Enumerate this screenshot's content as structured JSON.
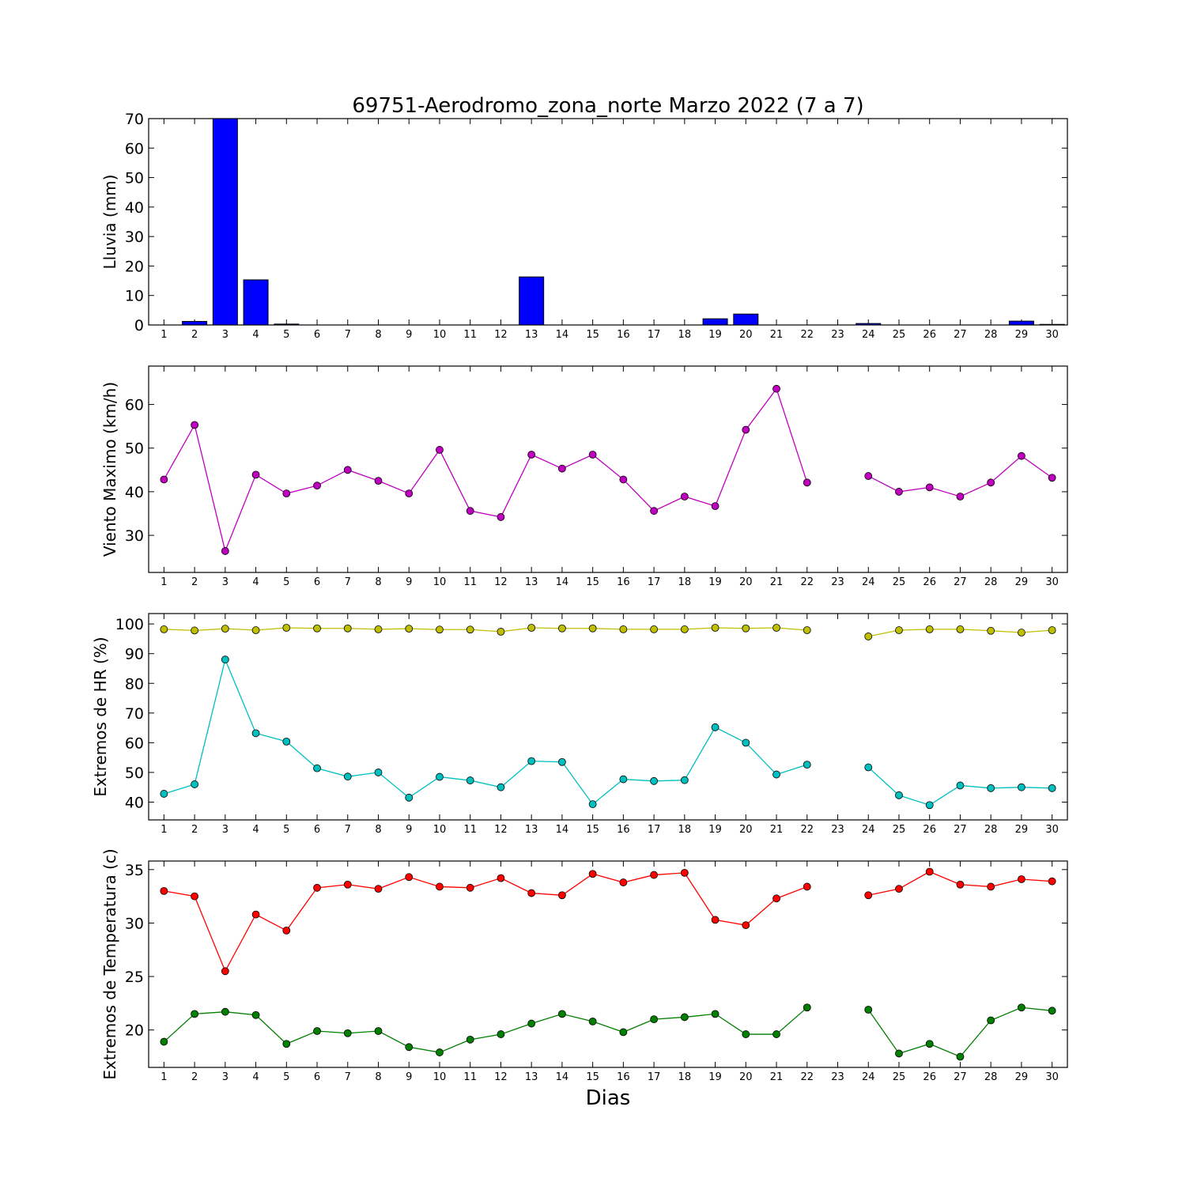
{
  "title": "69751-Aerodromo_zona_norte Marzo 2022  (7 a 7)",
  "xlabel": "Dias",
  "days": [
    1,
    2,
    3,
    4,
    5,
    6,
    7,
    8,
    9,
    10,
    11,
    12,
    13,
    14,
    15,
    16,
    17,
    18,
    19,
    20,
    21,
    22,
    23,
    24,
    25,
    26,
    27,
    28,
    29,
    30
  ],
  "chart_data": [
    {
      "type": "bar",
      "ylabel": "Lluvia (mm)",
      "ylim": [
        0,
        70
      ],
      "yticks": [
        0,
        10,
        20,
        30,
        40,
        50,
        60,
        70
      ],
      "color": "#0000ff",
      "series": [
        {
          "values": [
            0,
            1.2,
            70,
            15.3,
            0.3,
            0,
            0,
            0,
            0,
            0,
            0,
            0,
            16.3,
            0,
            0,
            0,
            0,
            0,
            2.1,
            3.7,
            0,
            0,
            0,
            0.5,
            0,
            0,
            0,
            0,
            1.3,
            0.2
          ]
        }
      ]
    },
    {
      "type": "line",
      "ylabel": "Viento Maximo (km/h)",
      "ylim": [
        21.5,
        68.8
      ],
      "yticks": [
        30,
        40,
        50,
        60
      ],
      "series": [
        {
          "color": "#bf00bf",
          "values": [
            42.8,
            55.3,
            26.4,
            43.9,
            39.6,
            41.4,
            45.0,
            42.5,
            39.6,
            49.6,
            35.6,
            34.2,
            48.5,
            45.3,
            48.5,
            42.8,
            35.6,
            38.9,
            36.7,
            54.2,
            63.6,
            42.1,
            null,
            43.6,
            40.0,
            41.0,
            38.9,
            42.1,
            48.2,
            43.2
          ]
        }
      ]
    },
    {
      "type": "line",
      "ylabel": "Extremos de HR (%)",
      "ylim": [
        34.0,
        103.5
      ],
      "yticks": [
        40,
        50,
        60,
        70,
        80,
        90,
        100
      ],
      "series": [
        {
          "color": "#bfbf00",
          "values": [
            98.2,
            97.8,
            98.4,
            97.9,
            98.7,
            98.5,
            98.5,
            98.2,
            98.4,
            98.1,
            98.1,
            97.4,
            98.7,
            98.5,
            98.5,
            98.2,
            98.2,
            98.2,
            98.7,
            98.5,
            98.7,
            97.9,
            null,
            95.8,
            97.9,
            98.2,
            98.2,
            97.7,
            97.1,
            97.9
          ]
        },
        {
          "color": "#00bfbf",
          "values": [
            42.8,
            46.0,
            88.0,
            63.2,
            60.4,
            51.4,
            48.6,
            50.0,
            41.5,
            48.5,
            47.3,
            45.0,
            53.8,
            53.5,
            39.3,
            47.7,
            47.1,
            47.4,
            65.2,
            60.0,
            49.3,
            52.6,
            null,
            51.7,
            42.3,
            39.0,
            45.6,
            44.7,
            45.0,
            44.7
          ]
        }
      ]
    },
    {
      "type": "line",
      "ylabel": "Extremos de Temperatura (c)",
      "ylim": [
        16.5,
        35.8
      ],
      "yticks": [
        20,
        25,
        30,
        35
      ],
      "series": [
        {
          "color": "#ff0000",
          "values": [
            33.0,
            32.5,
            25.5,
            30.8,
            29.3,
            33.3,
            33.6,
            33.2,
            34.3,
            33.4,
            33.3,
            34.2,
            32.8,
            32.6,
            34.6,
            33.8,
            34.5,
            34.7,
            30.3,
            29.8,
            32.3,
            33.4,
            null,
            32.6,
            33.2,
            34.8,
            33.6,
            33.4,
            34.1,
            33.9
          ]
        },
        {
          "color": "#007f00",
          "values": [
            18.9,
            21.5,
            21.7,
            21.4,
            18.7,
            19.9,
            19.7,
            19.9,
            18.4,
            17.9,
            19.1,
            19.6,
            20.6,
            21.5,
            20.8,
            19.8,
            21.0,
            21.2,
            21.5,
            19.6,
            19.6,
            22.1,
            null,
            21.9,
            17.8,
            18.7,
            17.5,
            20.9,
            22.1,
            21.8
          ]
        }
      ]
    }
  ]
}
